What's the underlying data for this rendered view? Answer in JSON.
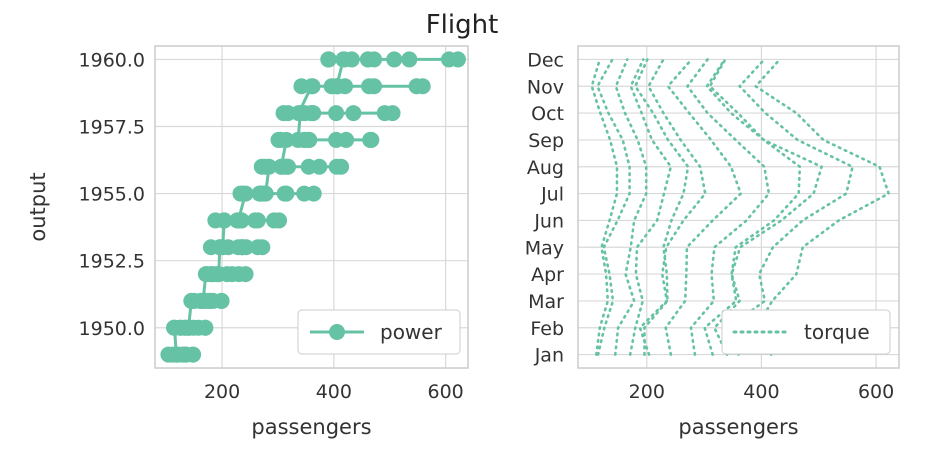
{
  "suptitle": "Flight",
  "colors": {
    "series": "#66c2a5",
    "grid": "#d9d9d9",
    "frame": "#cccccc"
  },
  "chart_data": [
    {
      "type": "line",
      "xlabel": "passengers",
      "ylabel": "output",
      "xlim": [
        80,
        640
      ],
      "ylim": [
        1948.5,
        1960.5
      ],
      "xticks": [
        200,
        400,
        600
      ],
      "yticks": [
        1950.0,
        1952.5,
        1955.0,
        1957.5,
        1960.0
      ],
      "ytick_labels": [
        "1950.0",
        "1952.5",
        "1955.0",
        "1957.5",
        "1960.0"
      ],
      "grid": true,
      "marker": "circle",
      "legend_position": "lower-right",
      "series": [
        {
          "name": "power",
          "points": [
            {
              "x": 112,
              "y": 1949
            },
            {
              "x": 118,
              "y": 1949
            },
            {
              "x": 132,
              "y": 1949
            },
            {
              "x": 129,
              "y": 1949
            },
            {
              "x": 121,
              "y": 1949
            },
            {
              "x": 135,
              "y": 1949
            },
            {
              "x": 148,
              "y": 1949
            },
            {
              "x": 148,
              "y": 1949
            },
            {
              "x": 136,
              "y": 1949
            },
            {
              "x": 119,
              "y": 1949
            },
            {
              "x": 104,
              "y": 1949
            },
            {
              "x": 118,
              "y": 1949
            },
            {
              "x": 115,
              "y": 1950
            },
            {
              "x": 126,
              "y": 1950
            },
            {
              "x": 141,
              "y": 1950
            },
            {
              "x": 135,
              "y": 1950
            },
            {
              "x": 125,
              "y": 1950
            },
            {
              "x": 149,
              "y": 1950
            },
            {
              "x": 170,
              "y": 1950
            },
            {
              "x": 170,
              "y": 1950
            },
            {
              "x": 158,
              "y": 1950
            },
            {
              "x": 133,
              "y": 1950
            },
            {
              "x": 114,
              "y": 1950
            },
            {
              "x": 140,
              "y": 1950
            },
            {
              "x": 145,
              "y": 1951
            },
            {
              "x": 150,
              "y": 1951
            },
            {
              "x": 178,
              "y": 1951
            },
            {
              "x": 163,
              "y": 1951
            },
            {
              "x": 172,
              "y": 1951
            },
            {
              "x": 178,
              "y": 1951
            },
            {
              "x": 199,
              "y": 1951
            },
            {
              "x": 199,
              "y": 1951
            },
            {
              "x": 184,
              "y": 1951
            },
            {
              "x": 162,
              "y": 1951
            },
            {
              "x": 146,
              "y": 1951
            },
            {
              "x": 166,
              "y": 1951
            },
            {
              "x": 171,
              "y": 1952
            },
            {
              "x": 180,
              "y": 1952
            },
            {
              "x": 193,
              "y": 1952
            },
            {
              "x": 181,
              "y": 1952
            },
            {
              "x": 183,
              "y": 1952
            },
            {
              "x": 218,
              "y": 1952
            },
            {
              "x": 230,
              "y": 1952
            },
            {
              "x": 242,
              "y": 1952
            },
            {
              "x": 209,
              "y": 1952
            },
            {
              "x": 191,
              "y": 1952
            },
            {
              "x": 172,
              "y": 1952
            },
            {
              "x": 194,
              "y": 1952
            },
            {
              "x": 196,
              "y": 1953
            },
            {
              "x": 196,
              "y": 1953
            },
            {
              "x": 236,
              "y": 1953
            },
            {
              "x": 235,
              "y": 1953
            },
            {
              "x": 229,
              "y": 1953
            },
            {
              "x": 243,
              "y": 1953
            },
            {
              "x": 264,
              "y": 1953
            },
            {
              "x": 272,
              "y": 1953
            },
            {
              "x": 237,
              "y": 1953
            },
            {
              "x": 211,
              "y": 1953
            },
            {
              "x": 180,
              "y": 1953
            },
            {
              "x": 201,
              "y": 1953
            },
            {
              "x": 204,
              "y": 1954
            },
            {
              "x": 188,
              "y": 1954
            },
            {
              "x": 235,
              "y": 1954
            },
            {
              "x": 227,
              "y": 1954
            },
            {
              "x": 234,
              "y": 1954
            },
            {
              "x": 264,
              "y": 1954
            },
            {
              "x": 302,
              "y": 1954
            },
            {
              "x": 293,
              "y": 1954
            },
            {
              "x": 259,
              "y": 1954
            },
            {
              "x": 229,
              "y": 1954
            },
            {
              "x": 203,
              "y": 1954
            },
            {
              "x": 229,
              "y": 1954
            },
            {
              "x": 242,
              "y": 1955
            },
            {
              "x": 233,
              "y": 1955
            },
            {
              "x": 267,
              "y": 1955
            },
            {
              "x": 269,
              "y": 1955
            },
            {
              "x": 270,
              "y": 1955
            },
            {
              "x": 315,
              "y": 1955
            },
            {
              "x": 364,
              "y": 1955
            },
            {
              "x": 347,
              "y": 1955
            },
            {
              "x": 312,
              "y": 1955
            },
            {
              "x": 274,
              "y": 1955
            },
            {
              "x": 237,
              "y": 1955
            },
            {
              "x": 278,
              "y": 1955
            },
            {
              "x": 284,
              "y": 1956
            },
            {
              "x": 277,
              "y": 1956
            },
            {
              "x": 317,
              "y": 1956
            },
            {
              "x": 313,
              "y": 1956
            },
            {
              "x": 318,
              "y": 1956
            },
            {
              "x": 374,
              "y": 1956
            },
            {
              "x": 413,
              "y": 1956
            },
            {
              "x": 405,
              "y": 1956
            },
            {
              "x": 355,
              "y": 1956
            },
            {
              "x": 306,
              "y": 1956
            },
            {
              "x": 271,
              "y": 1956
            },
            {
              "x": 306,
              "y": 1956
            },
            {
              "x": 315,
              "y": 1957
            },
            {
              "x": 301,
              "y": 1957
            },
            {
              "x": 356,
              "y": 1957
            },
            {
              "x": 348,
              "y": 1957
            },
            {
              "x": 355,
              "y": 1957
            },
            {
              "x": 422,
              "y": 1957
            },
            {
              "x": 465,
              "y": 1957
            },
            {
              "x": 467,
              "y": 1957
            },
            {
              "x": 404,
              "y": 1957
            },
            {
              "x": 347,
              "y": 1957
            },
            {
              "x": 305,
              "y": 1957
            },
            {
              "x": 336,
              "y": 1957
            },
            {
              "x": 340,
              "y": 1958
            },
            {
              "x": 318,
              "y": 1958
            },
            {
              "x": 362,
              "y": 1958
            },
            {
              "x": 348,
              "y": 1958
            },
            {
              "x": 363,
              "y": 1958
            },
            {
              "x": 435,
              "y": 1958
            },
            {
              "x": 491,
              "y": 1958
            },
            {
              "x": 505,
              "y": 1958
            },
            {
              "x": 404,
              "y": 1958
            },
            {
              "x": 359,
              "y": 1958
            },
            {
              "x": 310,
              "y": 1958
            },
            {
              "x": 337,
              "y": 1958
            },
            {
              "x": 360,
              "y": 1959
            },
            {
              "x": 342,
              "y": 1959
            },
            {
              "x": 406,
              "y": 1959
            },
            {
              "x": 396,
              "y": 1959
            },
            {
              "x": 420,
              "y": 1959
            },
            {
              "x": 472,
              "y": 1959
            },
            {
              "x": 548,
              "y": 1959
            },
            {
              "x": 559,
              "y": 1959
            },
            {
              "x": 463,
              "y": 1959
            },
            {
              "x": 407,
              "y": 1959
            },
            {
              "x": 362,
              "y": 1959
            },
            {
              "x": 405,
              "y": 1959
            },
            {
              "x": 417,
              "y": 1960
            },
            {
              "x": 391,
              "y": 1960
            },
            {
              "x": 419,
              "y": 1960
            },
            {
              "x": 461,
              "y": 1960
            },
            {
              "x": 472,
              "y": 1960
            },
            {
              "x": 535,
              "y": 1960
            },
            {
              "x": 622,
              "y": 1960
            },
            {
              "x": 606,
              "y": 1960
            },
            {
              "x": 508,
              "y": 1960
            },
            {
              "x": 461,
              "y": 1960
            },
            {
              "x": 390,
              "y": 1960
            },
            {
              "x": 432,
              "y": 1960
            }
          ]
        }
      ]
    },
    {
      "type": "line",
      "xlabel": "passengers",
      "ylabel": "",
      "xlim": [
        80,
        640
      ],
      "categories": [
        "Jan",
        "Feb",
        "Mar",
        "Apr",
        "May",
        "Jun",
        "Jul",
        "Aug",
        "Sep",
        "Oct",
        "Nov",
        "Dec"
      ],
      "xticks": [
        200,
        400,
        600
      ],
      "grid": true,
      "line_style": "dotted",
      "legend_position": "lower-right",
      "series": [
        {
          "name": "torque",
          "points_by_year": [
            [
              112,
              118,
              132,
              129,
              121,
              135,
              148,
              148,
              136,
              119,
              104,
              118
            ],
            [
              115,
              126,
              141,
              135,
              125,
              149,
              170,
              170,
              158,
              133,
              114,
              140
            ],
            [
              145,
              150,
              178,
              163,
              172,
              178,
              199,
              199,
              184,
              162,
              146,
              166
            ],
            [
              171,
              180,
              193,
              181,
              183,
              218,
              230,
              242,
              209,
              191,
              172,
              194
            ],
            [
              196,
              196,
              236,
              235,
              229,
              243,
              264,
              272,
              237,
              211,
              180,
              201
            ],
            [
              204,
              188,
              235,
              227,
              234,
              264,
              302,
              293,
              259,
              229,
              203,
              229
            ],
            [
              242,
              233,
              267,
              269,
              270,
              315,
              364,
              347,
              312,
              274,
              237,
              278
            ],
            [
              284,
              277,
              317,
              313,
              318,
              374,
              413,
              405,
              355,
              306,
              271,
              306
            ],
            [
              315,
              301,
              356,
              348,
              355,
              422,
              465,
              467,
              404,
              347,
              305,
              336
            ],
            [
              340,
              318,
              362,
              348,
              363,
              435,
              491,
              505,
              404,
              359,
              310,
              337
            ],
            [
              360,
              342,
              406,
              396,
              420,
              472,
              548,
              559,
              463,
              407,
              362,
              405
            ],
            [
              417,
              391,
              419,
              461,
              472,
              535,
              622,
              606,
              508,
              461,
              390,
              432
            ]
          ]
        }
      ]
    }
  ]
}
